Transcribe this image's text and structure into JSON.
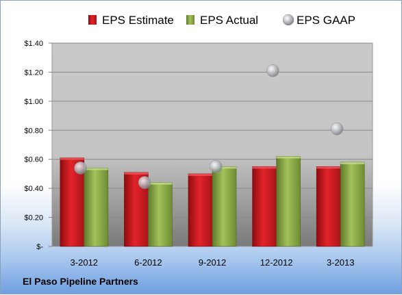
{
  "company": "El Paso Pipeline Partners",
  "chart_data": {
    "type": "bar",
    "categories": [
      "3-2012",
      "6-2012",
      "9-2012",
      "12-2012",
      "3-2013"
    ],
    "series": [
      {
        "name": "EPS Estimate",
        "kind": "bar",
        "color": "#c0161c",
        "values": [
          0.61,
          0.51,
          0.5,
          0.55,
          0.55
        ]
      },
      {
        "name": "EPS Actual",
        "kind": "bar",
        "color": "#8cac46",
        "values": [
          0.54,
          0.44,
          0.55,
          0.62,
          0.58
        ]
      },
      {
        "name": "EPS GAAP",
        "kind": "scatter",
        "color": "#b8bcc0",
        "values": [
          0.54,
          0.44,
          0.55,
          1.21,
          0.81
        ]
      }
    ],
    "ylim": [
      0,
      1.4
    ],
    "yticks": [
      "$-",
      "$0.20",
      "$0.40",
      "$0.60",
      "$0.80",
      "$1.00",
      "$1.20",
      "$1.40"
    ],
    "grid": true,
    "legend_position": "top"
  }
}
